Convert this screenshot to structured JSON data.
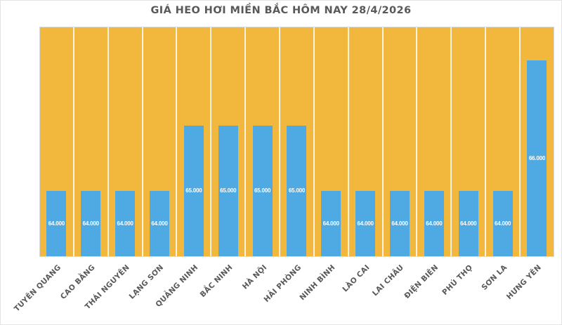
{
  "title": "GIÁ HEO HƠI MIỀN BẮC HÔM NAY 28/4/2026",
  "chart_data": {
    "type": "bar",
    "title": "GIÁ HEO HƠI MIỀN BẮC HÔM NAY 28/4/2026",
    "categories": [
      "TUYÊN QUANG",
      "CAO BẰNG",
      "THÁI NGUYÊN",
      "LẠNG SƠN",
      "QUẢNG NINH",
      "BẮC NINH",
      "HÀ NỘI",
      "HẢI PHÒNG",
      "NINH BÌNH",
      "LÀO CAI",
      "LAI CHÂU",
      "ĐIỆN BIÊN",
      "PHÚ THỌ",
      "SƠN LA",
      "HƯNG YÊN"
    ],
    "values": [
      64000,
      64000,
      64000,
      64000,
      65000,
      65000,
      65000,
      65000,
      64000,
      64000,
      64000,
      64000,
      64000,
      64000,
      66000
    ],
    "bar_labels": [
      "64.000",
      "64.000",
      "64.000",
      "64.000",
      "65.000",
      "65.000",
      "65.000",
      "65.000",
      "64.000",
      "64.000",
      "64.000",
      "64.000",
      "64.000",
      "64.000",
      "66.000"
    ],
    "xlabel": "",
    "ylabel": "",
    "ylim": [
      63000,
      66500
    ],
    "legend": "none",
    "grid": "white vertical separators between category columns",
    "label_position": "centered inside bar",
    "colors": {
      "plot_background": "#F2B83E",
      "bar": "#4FA9E2",
      "bar_label": "#FFFFFF",
      "title_text": "#595959",
      "category_label_text": "#595959",
      "column_separator": "#F5F1E8",
      "plot_border": "#D9D9D9"
    }
  }
}
